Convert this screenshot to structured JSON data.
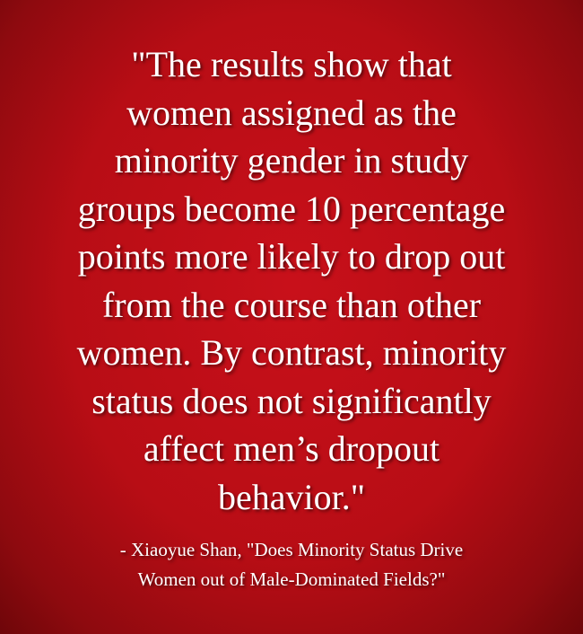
{
  "quote": {
    "lines": [
      "\"The results show that",
      "women assigned as the",
      "minority gender in study",
      "groups become 10 percentage",
      "points more likely to drop out",
      "from the course than other",
      "women. By contrast, minority",
      "status does not significantly",
      "affect men’s dropout",
      "behavior.\""
    ]
  },
  "attribution": {
    "lines": [
      "- Xiaoyue Shan, \"Does Minority Status Drive",
      "Women out of Male-Dominated Fields?\""
    ]
  }
}
